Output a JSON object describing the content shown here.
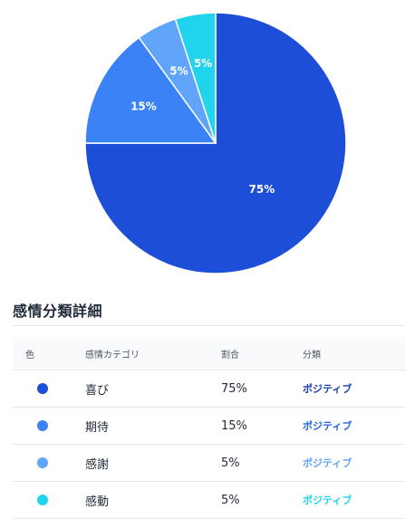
{
  "chart_data": {
    "type": "pie",
    "categories": [
      "喜び",
      "期待",
      "感謝",
      "感動"
    ],
    "values": [
      75,
      15,
      5,
      5
    ],
    "slice_labels": [
      "75%",
      "15%",
      "5%",
      "5%"
    ],
    "colors": [
      "#1d4ed8",
      "#3b82f6",
      "#60a5fa",
      "#22d3ee"
    ],
    "start": "top",
    "direction": "clockwise",
    "title": "",
    "legend": "none"
  },
  "details": {
    "title": "感情分類詳細",
    "headers": {
      "color": "色",
      "category": "感情カテゴリ",
      "ratio": "割合",
      "classification": "分類"
    },
    "rows": [
      {
        "color": "#1d4ed8",
        "category": "喜び",
        "ratio": "75%",
        "classification": "ポジティブ",
        "class_color": "#1e40af"
      },
      {
        "color": "#3b82f6",
        "category": "期待",
        "ratio": "15%",
        "classification": "ポジティブ",
        "class_color": "#2563eb"
      },
      {
        "color": "#60a5fa",
        "category": "感謝",
        "ratio": "5%",
        "classification": "ポジティブ",
        "class_color": "#60a5fa"
      },
      {
        "color": "#22d3ee",
        "category": "感動",
        "ratio": "5%",
        "classification": "ポジティブ",
        "class_color": "#22d3ee"
      }
    ]
  }
}
